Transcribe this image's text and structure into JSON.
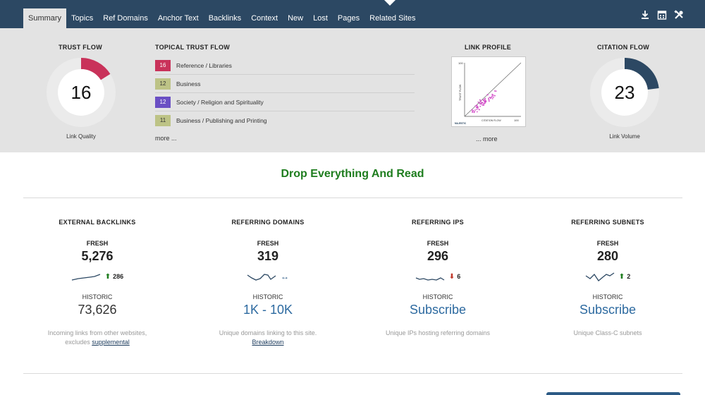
{
  "nav": {
    "tabs": [
      "Summary",
      "Topics",
      "Ref Domains",
      "Anchor Text",
      "Backlinks",
      "Context",
      "New",
      "Lost",
      "Pages",
      "Related Sites"
    ],
    "active_tab": "Summary",
    "icons": [
      "download-icon",
      "calendar-icon",
      "tools-icon"
    ]
  },
  "trust_flow": {
    "title": "TRUST FLOW",
    "value": "16",
    "caption": "Link Quality",
    "fill": 0.16,
    "color": "#c9325a"
  },
  "topical_trust_flow": {
    "title": "TOPICAL TRUST FLOW",
    "items": [
      {
        "score": "16",
        "label": "Reference / Libraries",
        "color": "#c9325a",
        "text_color": "#ffffff"
      },
      {
        "score": "12",
        "label": "Business",
        "color": "#bdc386",
        "text_color": "#333333"
      },
      {
        "score": "12",
        "label": "Society / Religion and Spirituality",
        "color": "#6a4fc4",
        "text_color": "#ffffff"
      },
      {
        "score": "11",
        "label": "Business / Publishing and Printing",
        "color": "#bdc386",
        "text_color": "#333333"
      }
    ],
    "more": "more ..."
  },
  "link_profile": {
    "title": "LINK PROFILE",
    "y_axis": "TRUST FLOW",
    "x_axis": "CITATION FLOW",
    "axis_max": "100",
    "logo_text": "MAJESTIC",
    "more": "... more"
  },
  "citation_flow": {
    "title": "CITATION FLOW",
    "value": "23",
    "caption": "Link Volume",
    "fill": 0.23,
    "color": "#2c4863"
  },
  "headline": "Drop Everything And Read",
  "stats": [
    {
      "title": "EXTERNAL BACKLINKS",
      "fresh_label": "FRESH",
      "fresh_value": "5,276",
      "delta": "286",
      "delta_dir": "up",
      "hist_label": "HISTORIC",
      "hist_value": "73,626",
      "desc": "Incoming links from other websites,",
      "desc2_prefix": "excludes ",
      "desc_link": "supplemental"
    },
    {
      "title": "REFERRING DOMAINS",
      "fresh_label": "FRESH",
      "fresh_value": "319",
      "delta": "",
      "delta_dir": "flat",
      "hist_label": "HISTORIC",
      "hist_value": "1K - 10K",
      "desc": "Unique domains linking to this site.",
      "desc2_prefix": "",
      "desc_link": "Breakdown"
    },
    {
      "title": "REFERRING IPS",
      "fresh_label": "FRESH",
      "fresh_value": "296",
      "delta": "6",
      "delta_dir": "down",
      "hist_label": "HISTORIC",
      "hist_value": "Subscribe",
      "desc": "Unique IPs hosting referring domains",
      "desc2_prefix": "",
      "desc_link": ""
    },
    {
      "title": "REFERRING SUBNETS",
      "fresh_label": "FRESH",
      "fresh_value": "280",
      "delta": "2",
      "delta_dir": "up",
      "hist_label": "HISTORIC",
      "hist_value": "Subscribe",
      "desc": "Unique Class-C subnets",
      "desc2_prefix": "",
      "desc_link": ""
    }
  ]
}
